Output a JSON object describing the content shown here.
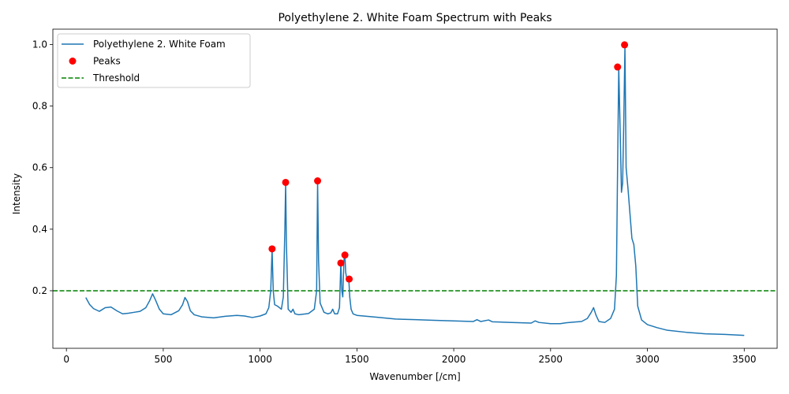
{
  "chart_data": {
    "type": "line",
    "title": "Polyethylene 2. White Foam Spectrum with Peaks",
    "xlabel": "Wavenumber [/cm]",
    "ylabel": "Intensity",
    "xlim": [
      -70,
      3670
    ],
    "ylim": [
      0.013,
      1.05
    ],
    "x_ticks": [
      0,
      500,
      1000,
      1500,
      2000,
      2500,
      3000,
      3500
    ],
    "x_tick_labels": [
      "0",
      "500",
      "1000",
      "1500",
      "2000",
      "2500",
      "3000",
      "3500"
    ],
    "y_ticks": [
      0.2,
      0.4,
      0.6,
      0.8,
      1.0
    ],
    "y_tick_labels": [
      "0.2",
      "0.4",
      "0.6",
      "0.8",
      "1.0"
    ],
    "grid": false,
    "legend_position": "top-left",
    "colors": {
      "line": "#1f77b4",
      "peaks": "#ff0000",
      "threshold": "#008000"
    },
    "series": [
      {
        "name": "Polyethylene 2. White Foam",
        "kind": "line",
        "x": [
          100,
          120,
          140,
          170,
          200,
          230,
          260,
          290,
          320,
          350,
          380,
          410,
          430,
          445,
          460,
          480,
          500,
          540,
          580,
          600,
          612,
          625,
          640,
          660,
          700,
          760,
          820,
          880,
          920,
          960,
          1000,
          1030,
          1045,
          1055,
          1062,
          1068,
          1075,
          1090,
          1110,
          1120,
          1128,
          1132,
          1136,
          1145,
          1160,
          1170,
          1180,
          1200,
          1250,
          1280,
          1292,
          1297,
          1302,
          1310,
          1330,
          1350,
          1365,
          1375,
          1385,
          1400,
          1410,
          1417,
          1422,
          1427,
          1433,
          1438,
          1442,
          1450,
          1458,
          1463,
          1470,
          1480,
          1500,
          1550,
          1600,
          1700,
          1800,
          1900,
          2000,
          2100,
          2120,
          2140,
          2180,
          2200,
          2300,
          2400,
          2420,
          2440,
          2500,
          2550,
          2580,
          2620,
          2660,
          2690,
          2710,
          2722,
          2735,
          2750,
          2780,
          2810,
          2830,
          2840,
          2846,
          2852,
          2860,
          2866,
          2872,
          2878,
          2884,
          2890,
          2900,
          2910,
          2920,
          2930,
          2940,
          2950,
          2970,
          3000,
          3050,
          3100,
          3200,
          3300,
          3400,
          3500
        ],
        "y": [
          0.178,
          0.155,
          0.142,
          0.133,
          0.145,
          0.147,
          0.135,
          0.125,
          0.127,
          0.13,
          0.133,
          0.145,
          0.168,
          0.19,
          0.17,
          0.14,
          0.125,
          0.122,
          0.135,
          0.155,
          0.178,
          0.165,
          0.135,
          0.122,
          0.115,
          0.112,
          0.117,
          0.12,
          0.118,
          0.113,
          0.118,
          0.125,
          0.145,
          0.2,
          0.335,
          0.2,
          0.155,
          0.15,
          0.14,
          0.18,
          0.4,
          0.55,
          0.35,
          0.14,
          0.13,
          0.14,
          0.125,
          0.122,
          0.126,
          0.14,
          0.2,
          0.555,
          0.3,
          0.16,
          0.13,
          0.125,
          0.128,
          0.14,
          0.125,
          0.125,
          0.145,
          0.29,
          0.2,
          0.18,
          0.3,
          0.315,
          0.26,
          0.23,
          0.24,
          0.18,
          0.14,
          0.125,
          0.12,
          0.117,
          0.114,
          0.108,
          0.106,
          0.104,
          0.102,
          0.1,
          0.106,
          0.1,
          0.105,
          0.099,
          0.097,
          0.095,
          0.102,
          0.097,
          0.093,
          0.093,
          0.096,
          0.098,
          0.1,
          0.11,
          0.13,
          0.145,
          0.12,
          0.1,
          0.097,
          0.11,
          0.14,
          0.25,
          0.6,
          0.925,
          0.7,
          0.52,
          0.55,
          0.75,
          0.995,
          0.6,
          0.53,
          0.45,
          0.37,
          0.35,
          0.28,
          0.15,
          0.105,
          0.09,
          0.08,
          0.072,
          0.065,
          0.06,
          0.058,
          0.055
        ]
      },
      {
        "name": "Peaks",
        "kind": "scatter",
        "x": [
          1062,
          1132,
          1297,
          1417,
          1438,
          1460,
          2846,
          2882
        ],
        "y": [
          0.336,
          0.552,
          0.557,
          0.29,
          0.316,
          0.238,
          0.927,
          0.999
        ]
      },
      {
        "name": "Threshold",
        "kind": "hline",
        "y": 0.2
      }
    ]
  }
}
